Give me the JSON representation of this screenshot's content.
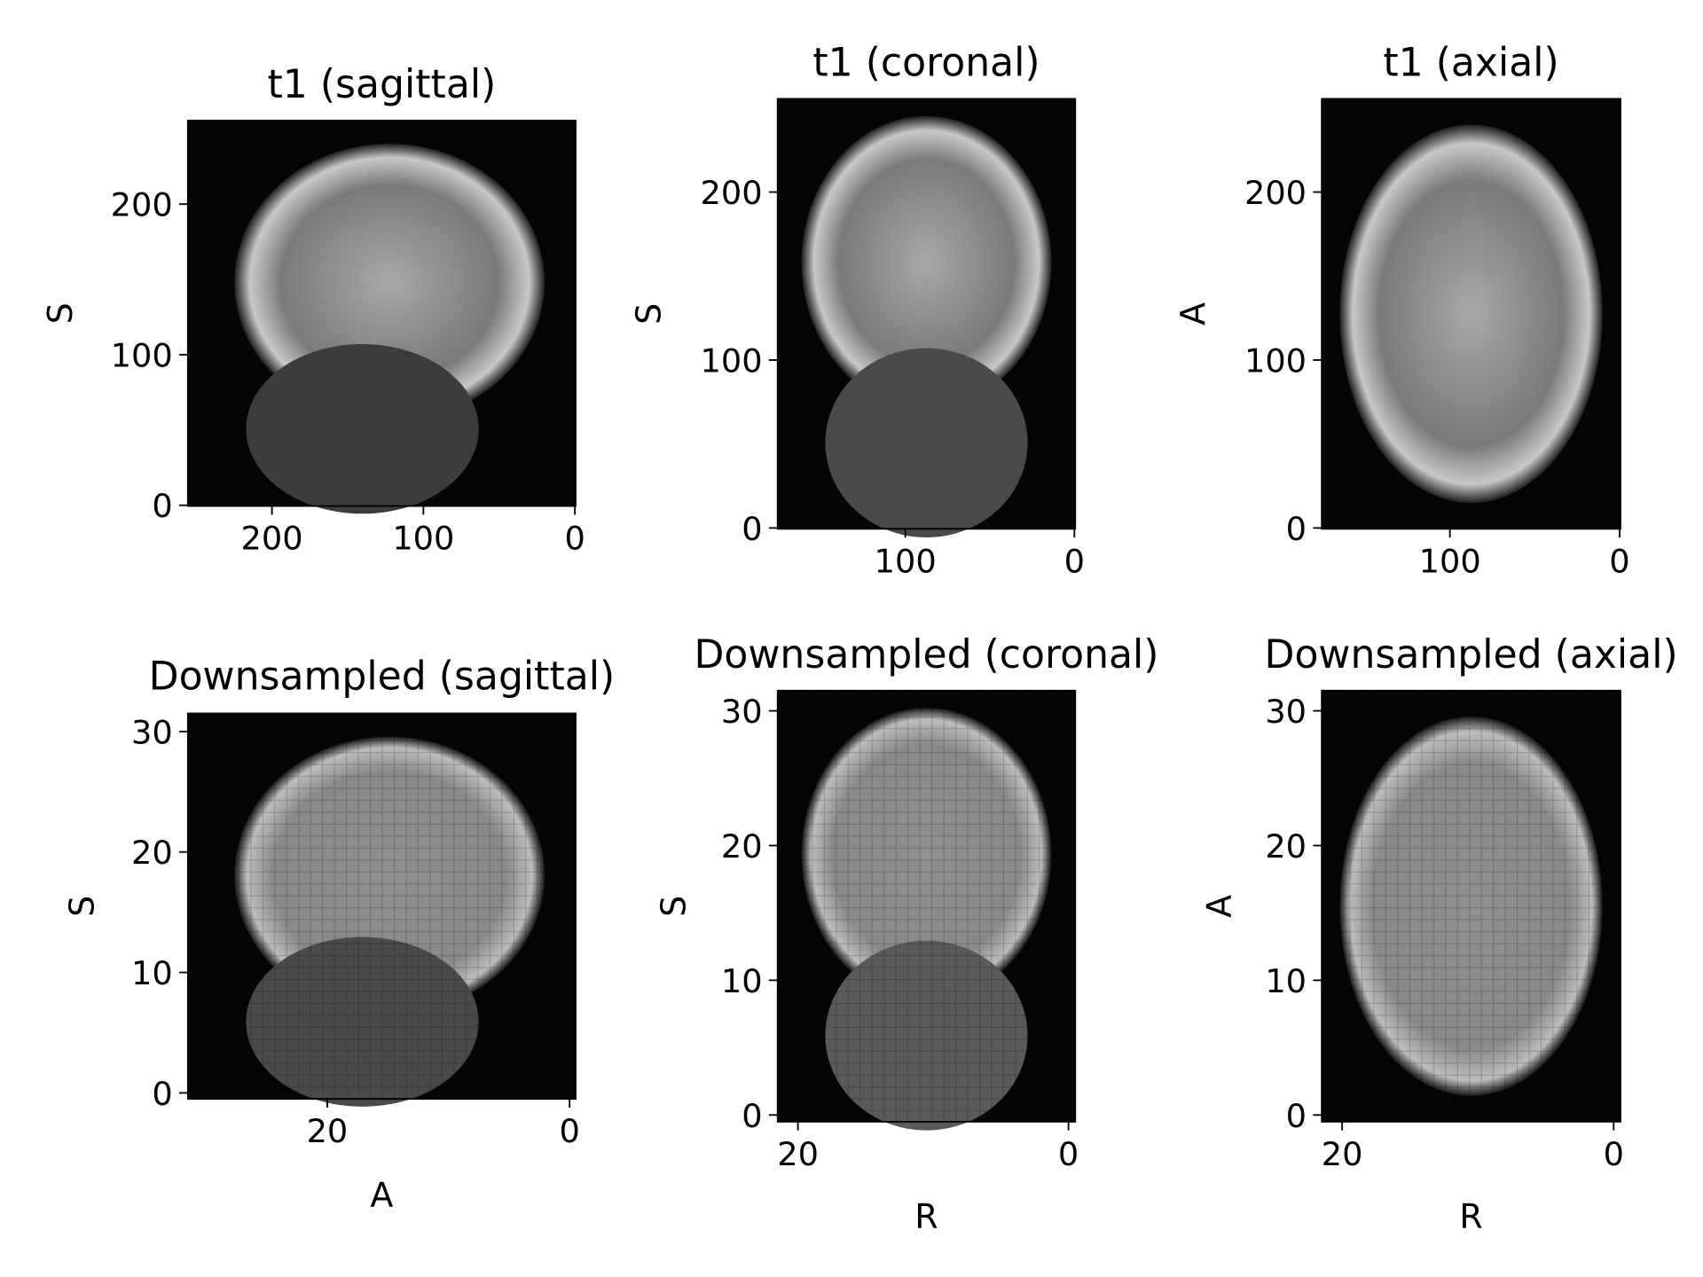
{
  "chart_data": [
    {
      "type": "image",
      "title": "t1 (sagittal)",
      "ylabel": "S",
      "xlim": [
        255.5,
        -0.5
      ],
      "ylim": [
        -0.5,
        255.5
      ],
      "xticks": [
        200,
        100,
        0
      ],
      "yticks": [
        0,
        100,
        200
      ]
    },
    {
      "type": "image",
      "title": "t1 (coronal)",
      "ylabel": "S",
      "xlim": [
        175.5,
        -0.5
      ],
      "ylim": [
        -0.5,
        255.5
      ],
      "xticks": [
        100,
        0
      ],
      "yticks": [
        0,
        100,
        200
      ]
    },
    {
      "type": "image",
      "title": "t1 (axial)",
      "ylabel": "A",
      "xlim": [
        175.5,
        -0.5
      ],
      "ylim": [
        -0.5,
        255.5
      ],
      "xticks": [
        100,
        0
      ],
      "yticks": [
        0,
        100,
        200
      ]
    },
    {
      "type": "image",
      "title": "Downsampled (sagittal)",
      "ylabel": "S",
      "xlabel": "A",
      "xlim": [
        31.5,
        -0.5
      ],
      "ylim": [
        -0.5,
        31.5
      ],
      "xticks": [
        20,
        0
      ],
      "yticks": [
        0,
        10,
        20,
        30
      ]
    },
    {
      "type": "image",
      "title": "Downsampled (coronal)",
      "ylabel": "S",
      "xlabel": "R",
      "xlim": [
        21.5,
        -0.5
      ],
      "ylim": [
        -0.5,
        31.5
      ],
      "xticks": [
        20,
        0
      ],
      "yticks": [
        0,
        10,
        20,
        30
      ]
    },
    {
      "type": "image",
      "title": "Downsampled (axial)",
      "ylabel": "A",
      "xlabel": "R",
      "xlim": [
        21.5,
        -0.5
      ],
      "ylim": [
        -0.5,
        31.5
      ],
      "xticks": [
        20,
        0
      ],
      "yticks": [
        0,
        10,
        20,
        30
      ]
    }
  ]
}
